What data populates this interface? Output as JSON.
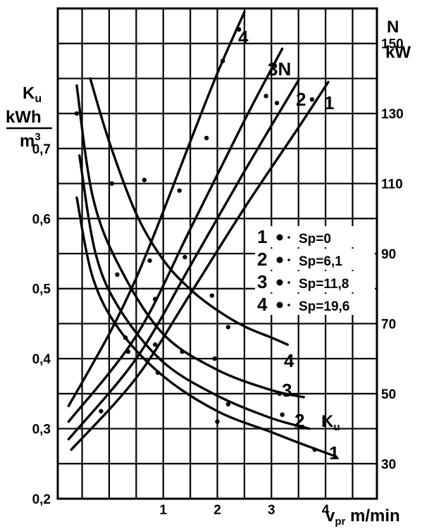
{
  "chart_data": {
    "type": "line",
    "x_axis": {
      "label_main": "v",
      "label_sub": "pr",
      "label_unit": " m/min",
      "ticks": [
        1,
        2,
        3,
        4
      ],
      "range": [
        -0.95,
        4.95
      ]
    },
    "y_left": {
      "label_main": "K",
      "label_sub": "u",
      "unit_num": "kWh",
      "unit_den_base": "m",
      "unit_den_sup": "3",
      "ticks": [
        "0,2",
        "0,3",
        "0,4",
        "0,5",
        "0,6",
        "0,7"
      ],
      "tick_values": [
        0.2,
        0.3,
        0.4,
        0.5,
        0.6,
        0.7
      ],
      "range": [
        0.2,
        0.9
      ]
    },
    "y_right": {
      "label": "N",
      "unit": "kW",
      "ticks": [
        "30",
        "50",
        "70",
        "90",
        "110",
        "130",
        "150"
      ],
      "tick_values": [
        30,
        50,
        70,
        90,
        110,
        130,
        150
      ],
      "range": [
        20,
        160
      ]
    },
    "grid": true,
    "legend": {
      "placement": "right",
      "entries": [
        {
          "num": "1",
          "text": "Sp=0"
        },
        {
          "num": "2",
          "text": "Sp=6,1"
        },
        {
          "num": "3",
          "text": "Sp=11,8"
        },
        {
          "num": "4",
          "text": "Sp=19,6"
        }
      ]
    },
    "ku_group_label": "K",
    "ku_group_label_sub": "u",
    "n_series": [
      {
        "name": "1",
        "x": [
          -0.7,
          0.5,
          1.5,
          2.5,
          3.5,
          4.05
        ],
        "y": [
          34,
          54.5,
          78.5,
          103,
          126,
          139
        ]
      },
      {
        "name": "2",
        "x": [
          -0.75,
          0.5,
          1.5,
          2.5,
          3.5
        ],
        "y": [
          37,
          60,
          86.5,
          113.5,
          139.5
        ]
      },
      {
        "name": "3N",
        "x": [
          -0.75,
          0.5,
          1.5,
          2.5,
          3.2
        ],
        "y": [
          42,
          66.5,
          97,
          128,
          148.5
        ]
      },
      {
        "name": "4",
        "x": [
          -0.75,
          0,
          0.5,
          1,
          1.5,
          2,
          2.5
        ],
        "y": [
          46.5,
          67,
          83,
          102,
          122,
          141.5,
          159
        ]
      }
    ],
    "ku_series": [
      {
        "name": "1",
        "x": [
          -0.6,
          -0.3,
          0.2,
          1,
          2,
          3,
          3.5,
          4.2
        ],
        "y": [
          0.63,
          0.515,
          0.44,
          0.375,
          0.325,
          0.295,
          0.28,
          0.26
        ]
      },
      {
        "name": "2",
        "x": [
          -0.55,
          -0.25,
          0.2,
          1,
          2,
          3,
          3.7
        ],
        "y": [
          0.69,
          0.55,
          0.47,
          0.395,
          0.347,
          0.315,
          0.3
        ]
      },
      {
        "name": "3",
        "x": [
          -0.6,
          -0.3,
          0.2,
          1,
          2,
          3,
          3.6
        ],
        "y": [
          0.79,
          0.63,
          0.53,
          0.435,
          0.384,
          0.355,
          0.345
        ]
      },
      {
        "name": "4",
        "x": [
          -0.35,
          0,
          0.5,
          1,
          1.5,
          2,
          2.5,
          3,
          3.3
        ],
        "y": [
          0.8,
          0.71,
          0.607,
          0.541,
          0.499,
          0.469,
          0.446,
          0.43,
          0.42
        ]
      }
    ],
    "points": [
      {
        "x": -0.6,
        "y": 0.75
      },
      {
        "x": -0.15,
        "y": 0.325
      },
      {
        "x": 0.05,
        "y": 0.65
      },
      {
        "x": 0.15,
        "y": 0.52
      },
      {
        "x": 0.3,
        "y": 0.43
      },
      {
        "x": 0.35,
        "y": 0.41
      },
      {
        "x": 0.65,
        "y": 0.655
      },
      {
        "x": 0.75,
        "y": 0.54
      },
      {
        "x": 0.85,
        "y": 0.485
      },
      {
        "x": 0.85,
        "y": 0.42
      },
      {
        "x": 0.9,
        "y": 0.38
      },
      {
        "x": 1.3,
        "y": 0.64
      },
      {
        "x": 1.35,
        "y": 0.41
      },
      {
        "x": 1.4,
        "y": 0.545
      },
      {
        "x": 1.8,
        "y": 0.715
      },
      {
        "x": 1.9,
        "y": 0.49
      },
      {
        "x": 1.95,
        "y": 0.4
      },
      {
        "x": 2.1,
        "y": 0.825
      },
      {
        "x": 2.2,
        "y": 0.445
      },
      {
        "x": 2.2,
        "y": 0.335
      },
      {
        "x": 2.4,
        "y": 0.87
      },
      {
        "x": 2.9,
        "y": 0.775
      },
      {
        "x": 3.1,
        "y": 0.765
      },
      {
        "x": 3.15,
        "y": 0.35
      },
      {
        "x": 3.2,
        "y": 0.32
      },
      {
        "x": 3.75,
        "y": 0.77
      },
      {
        "x": 3.8,
        "y": 0.27
      },
      {
        "x": 2.0,
        "y": 0.31
      }
    ]
  }
}
